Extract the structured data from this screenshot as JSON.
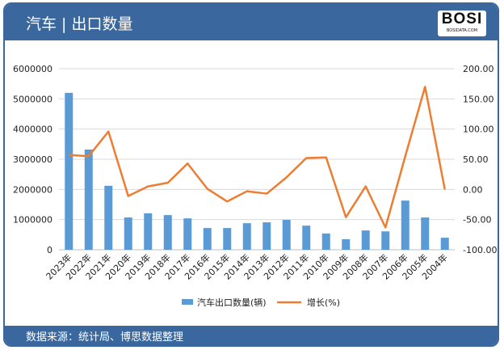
{
  "header": {
    "title": "汽车 | 出口数量",
    "logo": "BOSI",
    "logo_sub": "BOSIDATA.COM"
  },
  "footer": {
    "source": "数据来源：统计局、博思数据整理"
  },
  "chart_data": {
    "type": "bar+line",
    "categories": [
      "2023年",
      "2022年",
      "2021年",
      "2020年",
      "2019年",
      "2018年",
      "2017年",
      "2016年",
      "2015年",
      "2014年",
      "2013年",
      "2012年",
      "2011年",
      "2010年",
      "2009年",
      "2008年",
      "2007年",
      "2006年",
      "2005年",
      "2004年"
    ],
    "series": [
      {
        "name": "汽车出口数量(辆)",
        "type": "bar",
        "axis": "left",
        "color": "#5b9bd5",
        "values": [
          5200000,
          3320000,
          2120000,
          1070000,
          1210000,
          1150000,
          1040000,
          720000,
          720000,
          880000,
          910000,
          990000,
          800000,
          540000,
          350000,
          640000,
          610000,
          1630000,
          1070000,
          400000
        ]
      },
      {
        "name": "增长(%)",
        "type": "line",
        "axis": "right",
        "color": "#ed7d31",
        "values": [
          57,
          55,
          96,
          -11,
          5,
          11,
          43,
          1,
          -20,
          -3,
          -7,
          20,
          52,
          53,
          -46,
          5,
          -63,
          55,
          170,
          0
        ]
      }
    ],
    "left_axis": {
      "ylim": [
        0,
        6000000
      ],
      "ticks": [
        "0",
        "1000000",
        "2000000",
        "3000000",
        "4000000",
        "5000000",
        "6000000"
      ]
    },
    "right_axis": {
      "ylim": [
        -100,
        200
      ],
      "ticks": [
        "-100.00",
        "-50.00",
        "0.00",
        "50.00",
        "100.00",
        "150.00",
        "200.00"
      ]
    },
    "grid": true,
    "legend": "bottom"
  }
}
